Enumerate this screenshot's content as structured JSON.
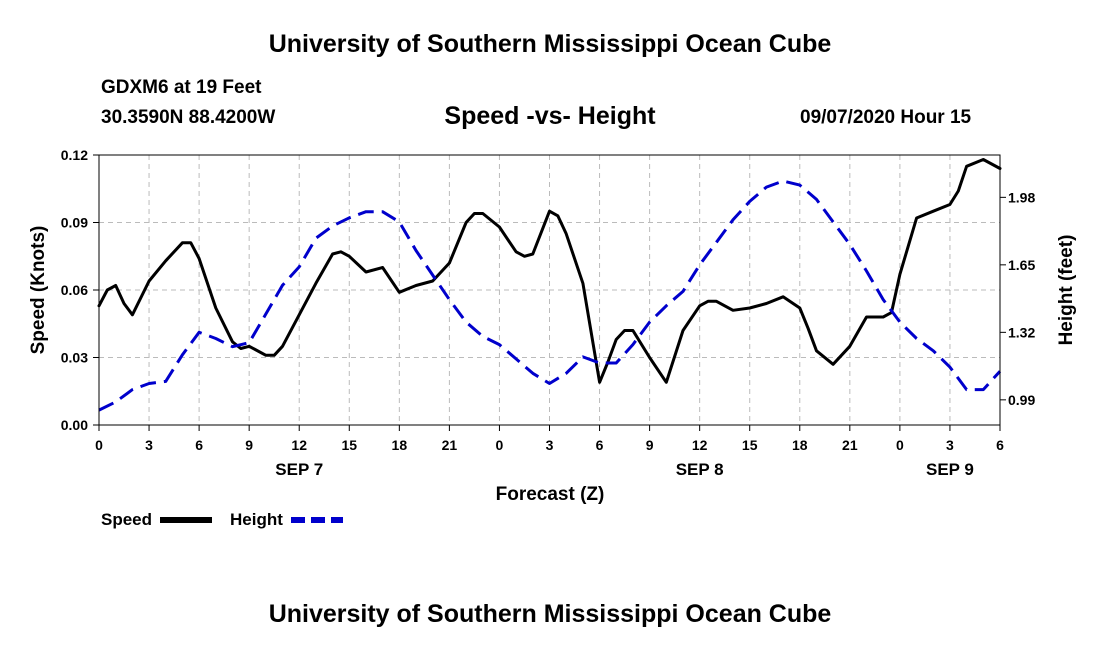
{
  "header": {
    "title": "University of Southern Mississippi Ocean Cube",
    "station": "GDXM6 at 19 Feet",
    "location": "30.3590N 88.4200W",
    "forecast_time": "09/07/2020 Hour 15"
  },
  "footer": {
    "title": "University of Southern Mississippi Ocean Cube"
  },
  "legend": {
    "speed_label": "Speed",
    "height_label": "Height"
  },
  "colors": {
    "speed": "#000000",
    "height": "#0000cc",
    "grid": "#bbbbbb"
  },
  "chart_data": {
    "type": "line",
    "title": "Speed -vs- Height",
    "xlabel": "Forecast (Z)",
    "ylabel": "Speed (Knots)",
    "y2label": "Height (feet)",
    "x_range_hours": [
      0,
      54
    ],
    "x_ticks": [
      0,
      3,
      6,
      9,
      12,
      15,
      18,
      21,
      24,
      27,
      30,
      33,
      36,
      39,
      42,
      45,
      48,
      51,
      54
    ],
    "x_tick_labels": [
      "0",
      "3",
      "6",
      "9",
      "12",
      "15",
      "18",
      "21",
      "0",
      "3",
      "6",
      "9",
      "12",
      "15",
      "18",
      "21",
      "0",
      "3",
      "6"
    ],
    "date_labels": [
      {
        "hour": 12,
        "label": "SEP 7"
      },
      {
        "hour": 36,
        "label": "SEP 8"
      },
      {
        "hour": 51,
        "label": "SEP 9"
      }
    ],
    "ylim": [
      0,
      0.12
    ],
    "y_ticks": [
      0.0,
      0.03,
      0.06,
      0.09,
      0.12
    ],
    "y_tick_labels": [
      "0.00",
      "0.03",
      "0.06",
      "0.09",
      "0.12"
    ],
    "y2lim": [
      0.867,
      2.187
    ],
    "y2_ticks": [
      0.99,
      1.32,
      1.65,
      1.98
    ],
    "y2_tick_labels": [
      "0.99",
      "1.32",
      "1.65",
      "1.98"
    ],
    "grid": true,
    "series": [
      {
        "name": "Speed",
        "axis": "left",
        "style": "solid",
        "x": [
          0,
          0.5,
          1,
          1.5,
          2,
          3,
          4,
          5,
          5.5,
          6,
          7,
          8,
          8.5,
          9,
          10,
          10.5,
          11,
          12,
          13,
          14,
          14.5,
          15,
          16,
          17,
          18,
          19,
          20,
          21,
          22,
          22.5,
          23,
          24,
          25,
          25.5,
          26,
          27,
          27.5,
          28,
          29,
          30,
          30.5,
          31,
          31.5,
          32,
          33,
          34,
          35,
          36,
          36.5,
          37,
          38,
          39,
          40,
          41,
          42,
          42.5,
          43,
          44,
          45,
          46,
          47,
          47.5,
          48,
          49,
          50,
          51,
          51.5,
          52,
          53,
          54
        ],
        "values": [
          0.053,
          0.06,
          0.062,
          0.054,
          0.049,
          0.064,
          0.073,
          0.081,
          0.081,
          0.074,
          0.052,
          0.037,
          0.034,
          0.035,
          0.031,
          0.031,
          0.035,
          0.049,
          0.063,
          0.076,
          0.077,
          0.075,
          0.068,
          0.07,
          0.059,
          0.062,
          0.064,
          0.072,
          0.09,
          0.094,
          0.094,
          0.088,
          0.077,
          0.075,
          0.076,
          0.095,
          0.093,
          0.085,
          0.063,
          0.019,
          0.028,
          0.038,
          0.042,
          0.042,
          0.03,
          0.019,
          0.042,
          0.053,
          0.055,
          0.055,
          0.051,
          0.052,
          0.054,
          0.057,
          0.052,
          0.043,
          0.033,
          0.027,
          0.035,
          0.048,
          0.048,
          0.05,
          0.067,
          0.092,
          0.095,
          0.098,
          0.104,
          0.115,
          0.118,
          0.114
        ]
      },
      {
        "name": "Height",
        "axis": "right",
        "style": "dashed",
        "x": [
          0,
          1,
          2,
          3,
          4,
          5,
          6,
          7,
          8,
          9,
          10,
          11,
          12,
          13,
          14,
          15,
          16,
          17,
          18,
          19,
          20,
          21,
          22,
          23,
          24,
          25,
          26,
          27,
          28,
          29,
          30,
          31,
          32,
          33,
          34,
          35,
          36,
          37,
          38,
          39,
          40,
          41,
          42,
          43,
          44,
          45,
          46,
          47,
          48,
          49,
          50,
          51,
          52,
          53,
          54
        ],
        "values": [
          0.94,
          0.98,
          1.04,
          1.07,
          1.08,
          1.21,
          1.32,
          1.29,
          1.25,
          1.27,
          1.41,
          1.55,
          1.64,
          1.78,
          1.84,
          1.88,
          1.91,
          1.91,
          1.86,
          1.72,
          1.6,
          1.48,
          1.37,
          1.3,
          1.26,
          1.19,
          1.12,
          1.07,
          1.12,
          1.2,
          1.17,
          1.17,
          1.26,
          1.37,
          1.45,
          1.52,
          1.65,
          1.76,
          1.87,
          1.96,
          2.03,
          2.06,
          2.04,
          1.97,
          1.86,
          1.75,
          1.62,
          1.48,
          1.37,
          1.29,
          1.23,
          1.15,
          1.04,
          1.04,
          1.13
        ]
      }
    ]
  }
}
